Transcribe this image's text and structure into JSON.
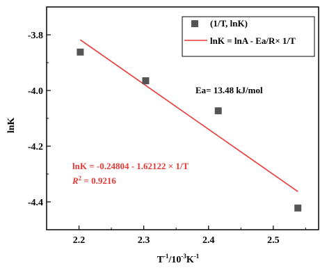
{
  "chart_data": {
    "type": "scatter",
    "title": "",
    "xlabel_base": "T",
    "xlabel_sup1": "-1",
    "xlabel_mid": "/10",
    "xlabel_sup2": "-3",
    "xlabel_tail": "K",
    "xlabel_sup3": "-1",
    "ylabel": "lnK",
    "xlim": [
      2.15,
      2.57
    ],
    "ylim": [
      -4.5,
      -3.7
    ],
    "x_ticks": [
      2.2,
      2.3,
      2.4,
      2.5
    ],
    "x_tick_labels": [
      "2.2",
      "2.3",
      "2.4",
      "2.5"
    ],
    "y_ticks": [
      -3.8,
      -4.0,
      -4.2,
      -4.4
    ],
    "y_tick_labels": [
      "-3.8",
      "-4.0",
      "-4.2",
      "-4.4"
    ],
    "series": [
      {
        "name": "(1/T, lnK)",
        "kind": "scatter",
        "color": "#555555",
        "x": [
          2.202,
          2.303,
          2.415,
          2.538
        ],
        "y": [
          -3.862,
          -3.965,
          -4.073,
          -4.422
        ]
      },
      {
        "name": "lnK = lnA - Ea/R× 1/T",
        "kind": "line",
        "color": "#e53935",
        "x": [
          2.202,
          2.538
        ],
        "y": [
          -3.818,
          -4.363
        ]
      }
    ],
    "legend_position": "top-right",
    "annotations": {
      "ea_text": "Ea= 13.48 kJ/mol",
      "fit_equation": "lnK = -0.24804 - 1.62122 × 1/T",
      "r2_label_r": "R",
      "r2_label_sup": "2",
      "r2_value": " = 0.9216",
      "fit_color": "#e53935"
    },
    "grid": false
  }
}
